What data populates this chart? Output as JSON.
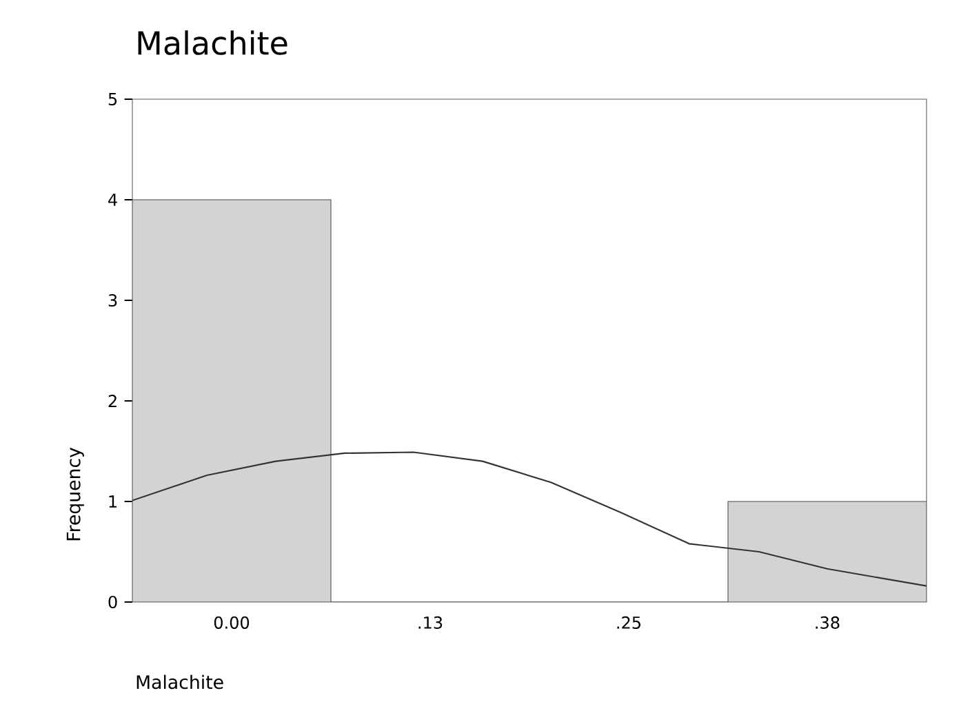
{
  "chart_data": {
    "type": "histogram",
    "title": "Malachite",
    "xlabel": "Malachite",
    "ylabel": "Frequency",
    "bins": [
      -0.0625,
      0.0625,
      0.1875,
      0.3125,
      0.4375
    ],
    "values": [
      4,
      0,
      0,
      1
    ],
    "color": "#d3d3d3",
    "series": [
      {
        "type": "line",
        "color": "#333333",
        "x": [
          -0.0625,
          -0.0156,
          0.0278,
          0.0712,
          0.1146,
          0.158,
          0.201,
          0.245,
          0.288,
          0.332,
          0.375,
          0.4375
        ],
        "values": [
          1.01,
          1.26,
          1.4,
          1.48,
          1.49,
          1.4,
          1.19,
          0.89,
          0.58,
          0.5,
          0.33,
          0.16
        ]
      }
    ],
    "xlim": [
      -0.0625,
      0.4375
    ],
    "ylim": [
      0,
      5
    ],
    "xticks": [
      {
        "value": 0,
        "label": "0.00"
      },
      {
        "value": 0.125,
        "label": ".13"
      },
      {
        "value": 0.25,
        "label": ".25"
      },
      {
        "value": 0.375,
        "label": ".38"
      }
    ],
    "yticks": [
      0,
      1,
      2,
      3,
      4,
      5
    ],
    "grid": false
  }
}
